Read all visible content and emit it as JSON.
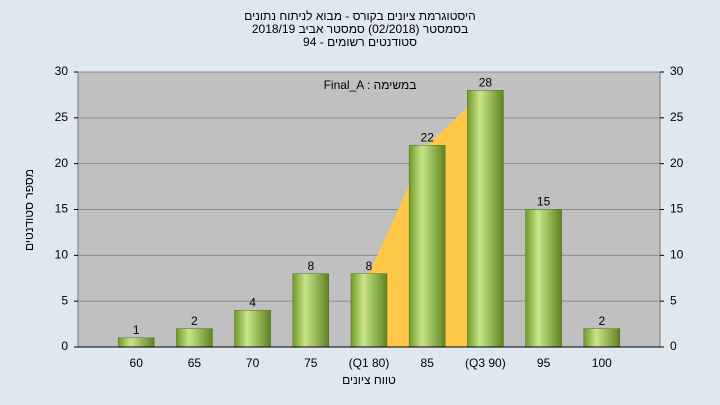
{
  "chart_data": {
    "type": "bar",
    "title_lines": [
      "היסטוגרמת ציונים בקורס - מבוא לניתוח נתונים",
      "בסמסטר  (02/2018)  סמסטר אביב 2018/19",
      "סטודנטים רשומים - 94"
    ],
    "annotation": "Final_A : במשימה",
    "x_label": "טווח ציונים",
    "y_label": "מספר סטודנטים",
    "categories": [
      "60",
      "65",
      "70",
      "75",
      "(Q1 80)",
      "85",
      "(Q3 90)",
      "95",
      "100"
    ],
    "values": [
      1,
      2,
      4,
      8,
      8,
      22,
      28,
      15,
      2
    ],
    "color": "#8db33f",
    "highlight_color": "#ffc848",
    "ylim": [
      0,
      30
    ],
    "yticks": [
      0,
      5,
      10,
      15,
      20,
      25,
      30
    ],
    "grid": true
  }
}
